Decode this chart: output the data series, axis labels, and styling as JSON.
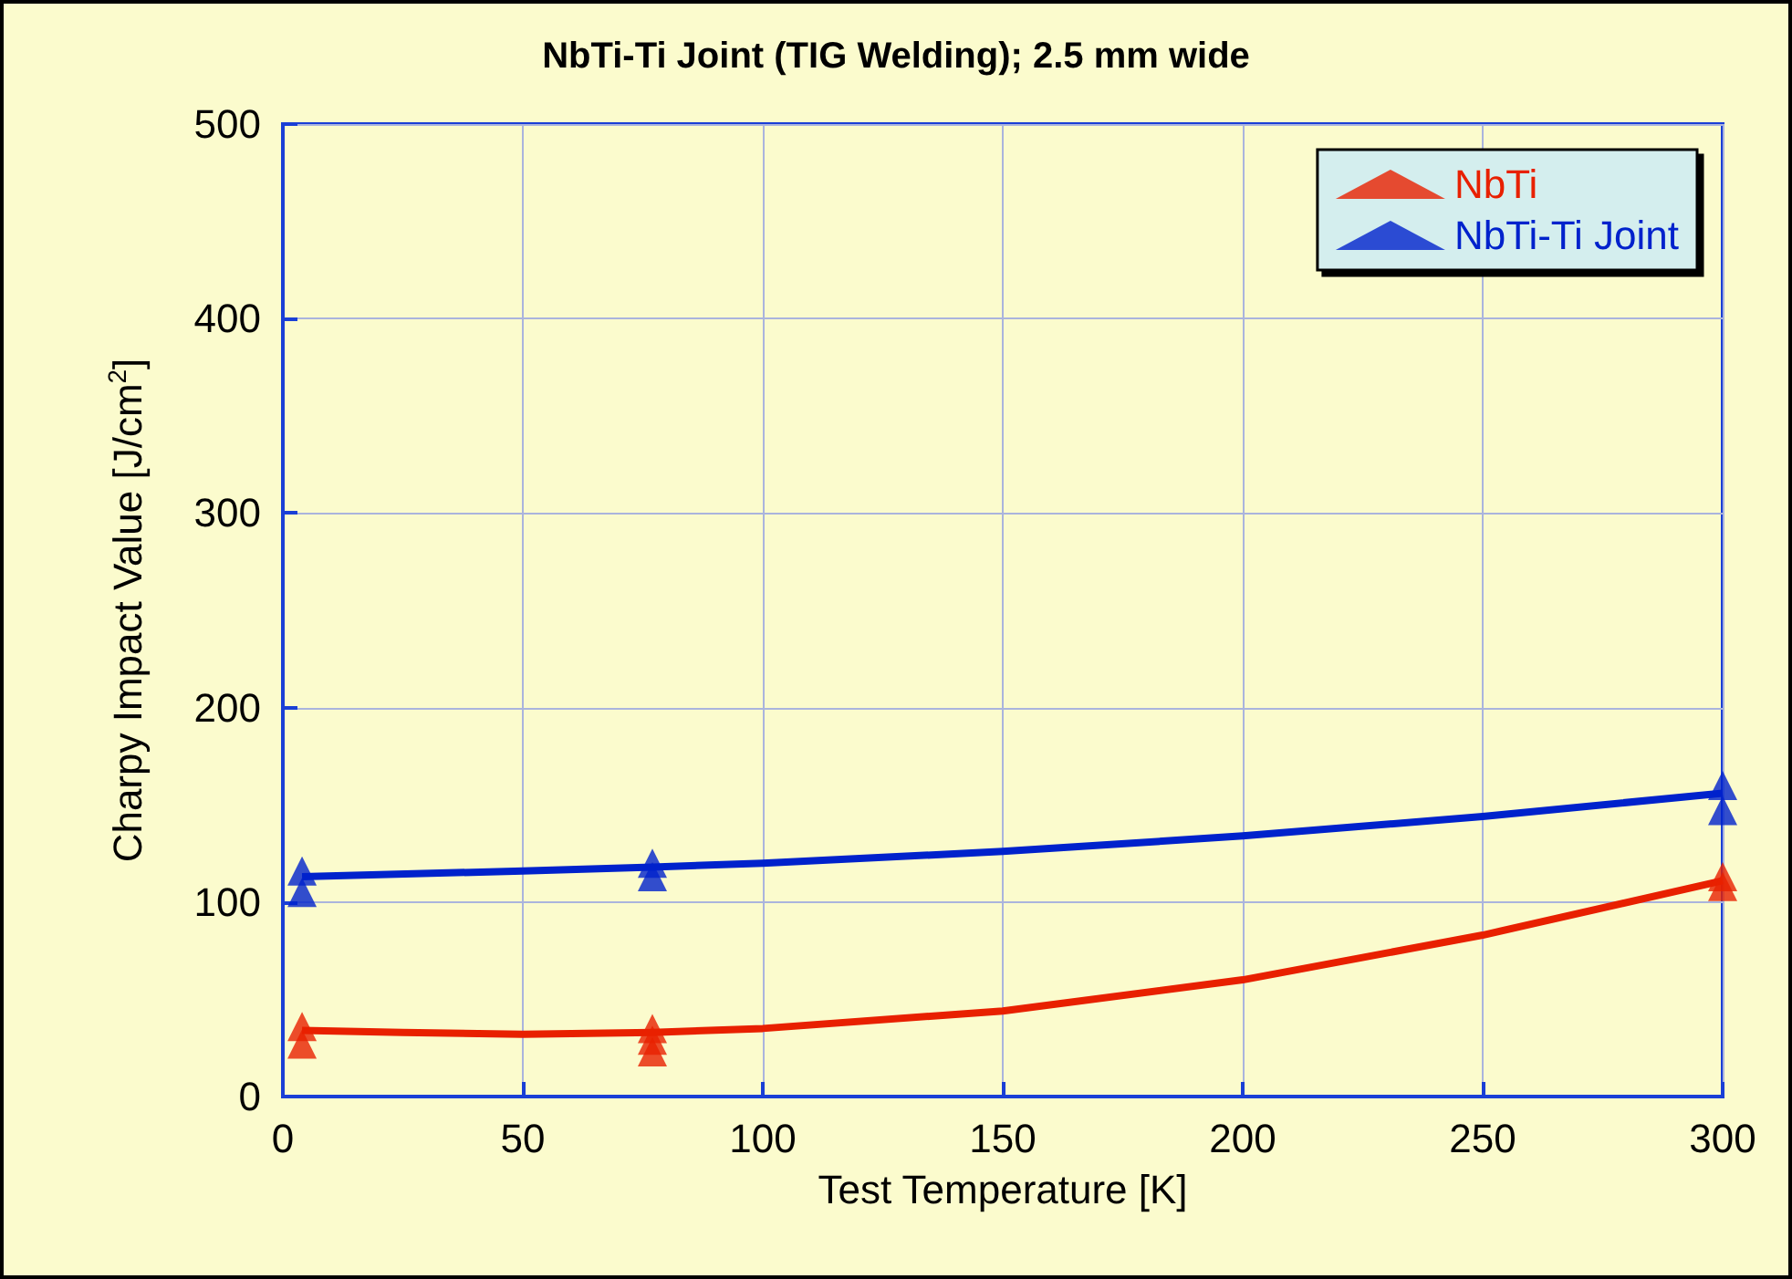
{
  "chart_data": {
    "type": "scatter",
    "title": "NbTi-Ti Joint (TIG Welding); 2.5 mm wide",
    "xlabel": "Test Temperature [K]",
    "ylabel": "Charpy Impact Value [J/cm$^{2}$]",
    "xlim": [
      0,
      300
    ],
    "xticks": [
      0,
      50,
      100,
      150,
      200,
      250,
      300
    ],
    "ylim": [
      0,
      500
    ],
    "yticks": [
      0,
      100,
      200,
      300,
      400,
      500
    ],
    "grid": true,
    "legend": "top right",
    "marker": "triangle",
    "series": [
      {
        "name": "NbTi",
        "color": "#e82000",
        "x": [
          4,
          4,
          77,
          77,
          77,
          300,
          300
        ],
        "values": [
          36,
          27,
          35,
          29,
          23,
          113,
          108
        ]
      },
      {
        "name": "NbTi-Ti Joint",
        "color": "#0022cc",
        "x": [
          4,
          4,
          77,
          77,
          300,
          300
        ],
        "values": [
          116,
          105,
          120,
          113,
          160,
          147
        ]
      },
      {
        "type": "line",
        "marker": "none",
        "color": "#e82000",
        "x": [
          4,
          25,
          50,
          77,
          100,
          150,
          200,
          250,
          300
        ],
        "values": [
          34,
          33,
          32,
          33,
          35,
          44,
          60,
          83,
          111
        ]
      },
      {
        "type": "line",
        "marker": "none",
        "color": "#0022cc",
        "x": [
          4,
          50,
          77,
          100,
          150,
          200,
          250,
          300
        ],
        "values": [
          113,
          116,
          118,
          120,
          126,
          134,
          144,
          156
        ]
      }
    ]
  }
}
